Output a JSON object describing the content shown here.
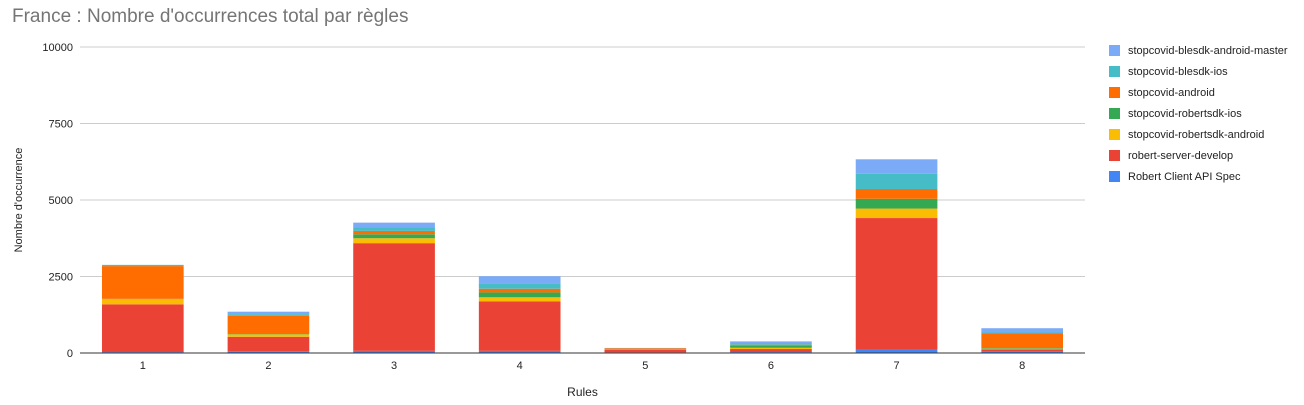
{
  "chart_data": {
    "type": "bar",
    "stacked": true,
    "title": "France : Nombre d'occurrences total par règles",
    "xlabel": "Rules",
    "ylabel": "Nombre d'occurrence",
    "ylim": [
      0,
      10000
    ],
    "yticks": [
      "0",
      "2500",
      "5000",
      "7500",
      "10000"
    ],
    "categories": [
      "1",
      "2",
      "3",
      "4",
      "5",
      "6",
      "7",
      "8"
    ],
    "grid": true,
    "legend_position": "right",
    "series": [
      {
        "name": "Robert Client API Spec",
        "color": "#4285f4",
        "values": [
          30,
          60,
          70,
          70,
          20,
          30,
          130,
          40
        ]
      },
      {
        "name": "robert-server-develop",
        "color": "#ea4335",
        "values": [
          1560,
          470,
          3520,
          1620,
          80,
          100,
          4280,
          80
        ]
      },
      {
        "name": "stopcovid-robertsdk-android",
        "color": "#fbbc04",
        "values": [
          170,
          80,
          160,
          130,
          10,
          40,
          310,
          20
        ]
      },
      {
        "name": "stopcovid-robertsdk-ios",
        "color": "#34a853",
        "values": [
          10,
          10,
          130,
          160,
          5,
          70,
          320,
          20
        ]
      },
      {
        "name": "stopcovid-android",
        "color": "#ff6d01",
        "values": [
          1070,
          600,
          110,
          120,
          40,
          30,
          320,
          490
        ]
      },
      {
        "name": "stopcovid-blesdk-ios",
        "color": "#46bdc6",
        "values": [
          40,
          50,
          110,
          180,
          5,
          40,
          500,
          20
        ]
      },
      {
        "name": "stopcovid-blesdk-android-master",
        "color": "#7baaf7",
        "values": [
          0,
          80,
          160,
          230,
          5,
          70,
          470,
          140
        ]
      }
    ]
  }
}
